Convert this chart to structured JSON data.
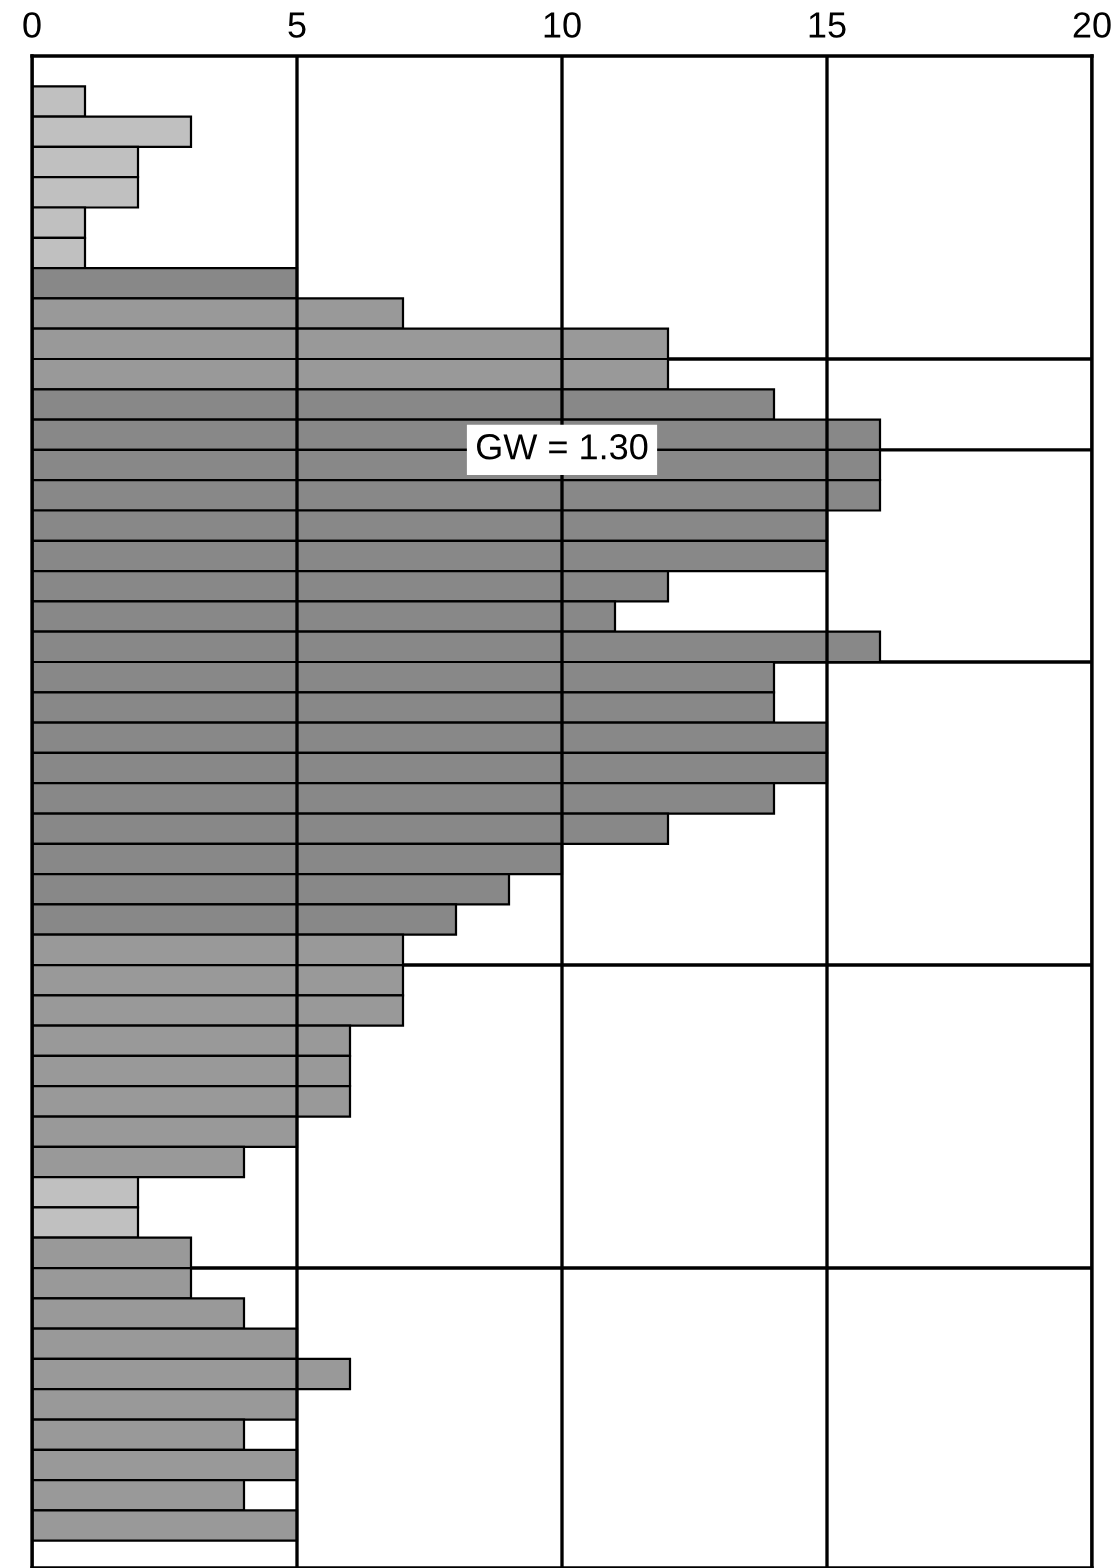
{
  "chart_data": {
    "type": "bar",
    "orientation": "horizontal",
    "categories": [
      null,
      null,
      null,
      null,
      null,
      null,
      null,
      null,
      null,
      null,
      null,
      null,
      null,
      null,
      null,
      null,
      null,
      null,
      null,
      null,
      null,
      null,
      null,
      null,
      null,
      null,
      null,
      null,
      null,
      null,
      null,
      null,
      null,
      null,
      null,
      null,
      null,
      null,
      null,
      null,
      null,
      null,
      null,
      null,
      null,
      null,
      null,
      null
    ],
    "values": [
      1,
      3,
      2,
      2,
      1,
      1,
      5,
      7,
      12,
      12,
      14,
      16,
      16,
      16,
      15,
      15,
      12,
      11,
      16,
      14,
      14,
      15,
      15,
      14,
      12,
      10,
      9,
      8,
      7,
      7,
      7,
      6,
      6,
      6,
      5,
      4,
      2,
      2,
      3,
      3,
      4,
      5,
      6,
      5,
      4,
      5,
      4,
      5
    ],
    "colors": [
      "#c0c0c0",
      "#c0c0c0",
      "#c0c0c0",
      "#c0c0c0",
      "#c0c0c0",
      "#c0c0c0",
      "#888888",
      "#999999",
      "#999999",
      "#999999",
      "#888888",
      "#888888",
      "#888888",
      "#888888",
      "#888888",
      "#888888",
      "#888888",
      "#888888",
      "#888888",
      "#888888",
      "#888888",
      "#888888",
      "#888888",
      "#888888",
      "#888888",
      "#888888",
      "#888888",
      "#888888",
      "#999999",
      "#999999",
      "#999999",
      "#999999",
      "#999999",
      "#999999",
      "#999999",
      "#999999",
      "#c0c0c0",
      "#c0c0c0",
      "#999999",
      "#999999",
      "#999999",
      "#999999",
      "#999999",
      "#999999",
      "#999999",
      "#999999",
      "#999999",
      "#999999"
    ],
    "xlim": [
      0,
      20
    ],
    "xticks": [
      0,
      5,
      10,
      15,
      20
    ],
    "grid": "x",
    "annotations": [
      "GW = 1.30"
    ]
  }
}
